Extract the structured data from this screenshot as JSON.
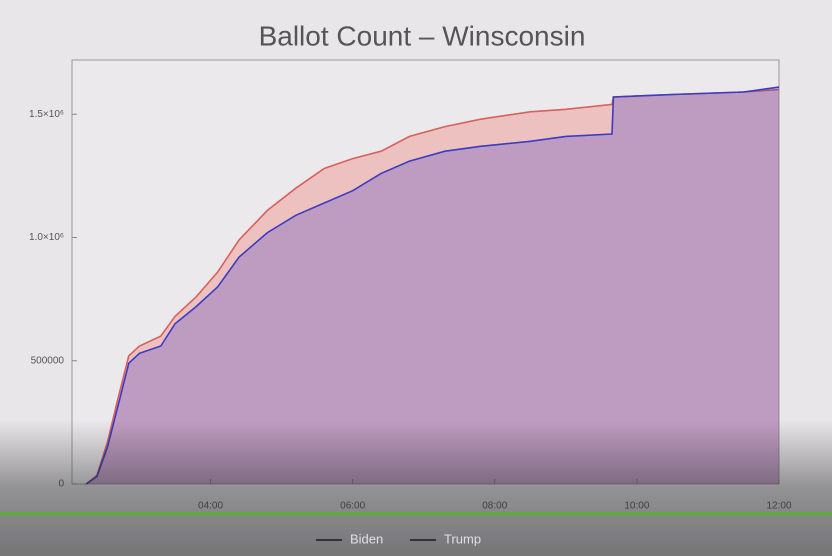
{
  "chart_data": {
    "type": "area",
    "title": "Ballot Count – Winsconsin",
    "x": [
      2.25,
      2.4,
      2.55,
      2.7,
      2.85,
      3.0,
      3.3,
      3.5,
      3.8,
      4.1,
      4.4,
      4.8,
      5.2,
      5.6,
      6.0,
      6.4,
      6.8,
      7.3,
      7.8,
      8.5,
      9.0,
      9.65,
      9.67,
      10.5,
      11.5,
      12.0
    ],
    "series": [
      {
        "name": "Biden",
        "color": "#3b3bc4",
        "values": [
          0,
          30000,
          150000,
          320000,
          490000,
          530000,
          560000,
          650000,
          720000,
          800000,
          920000,
          1020000,
          1090000,
          1140000,
          1190000,
          1260000,
          1310000,
          1350000,
          1370000,
          1390000,
          1410000,
          1420000,
          1570000,
          1580000,
          1590000,
          1610000
        ]
      },
      {
        "name": "Trump",
        "color": "#d9605c",
        "values": [
          0,
          35000,
          170000,
          350000,
          520000,
          560000,
          600000,
          680000,
          760000,
          860000,
          990000,
          1110000,
          1200000,
          1280000,
          1320000,
          1350000,
          1410000,
          1450000,
          1480000,
          1510000,
          1520000,
          1540000,
          1570000,
          1580000,
          1590000,
          1600000
        ]
      }
    ],
    "xlim": [
      2.05,
      12.0
    ],
    "xticks": [
      {
        "value": 4,
        "label": "04:00"
      },
      {
        "value": 6,
        "label": "06:00"
      },
      {
        "value": 8,
        "label": "08:00"
      },
      {
        "value": 10,
        "label": "10:00"
      },
      {
        "value": 12,
        "label": "12:00"
      }
    ],
    "ylim": [
      0,
      1720000
    ],
    "yticks": [
      0,
      500000,
      {
        "value": 1000000,
        "label": "1.0×10⁶"
      },
      {
        "value": 1500000,
        "label": "1.5×10⁶"
      }
    ]
  }
}
